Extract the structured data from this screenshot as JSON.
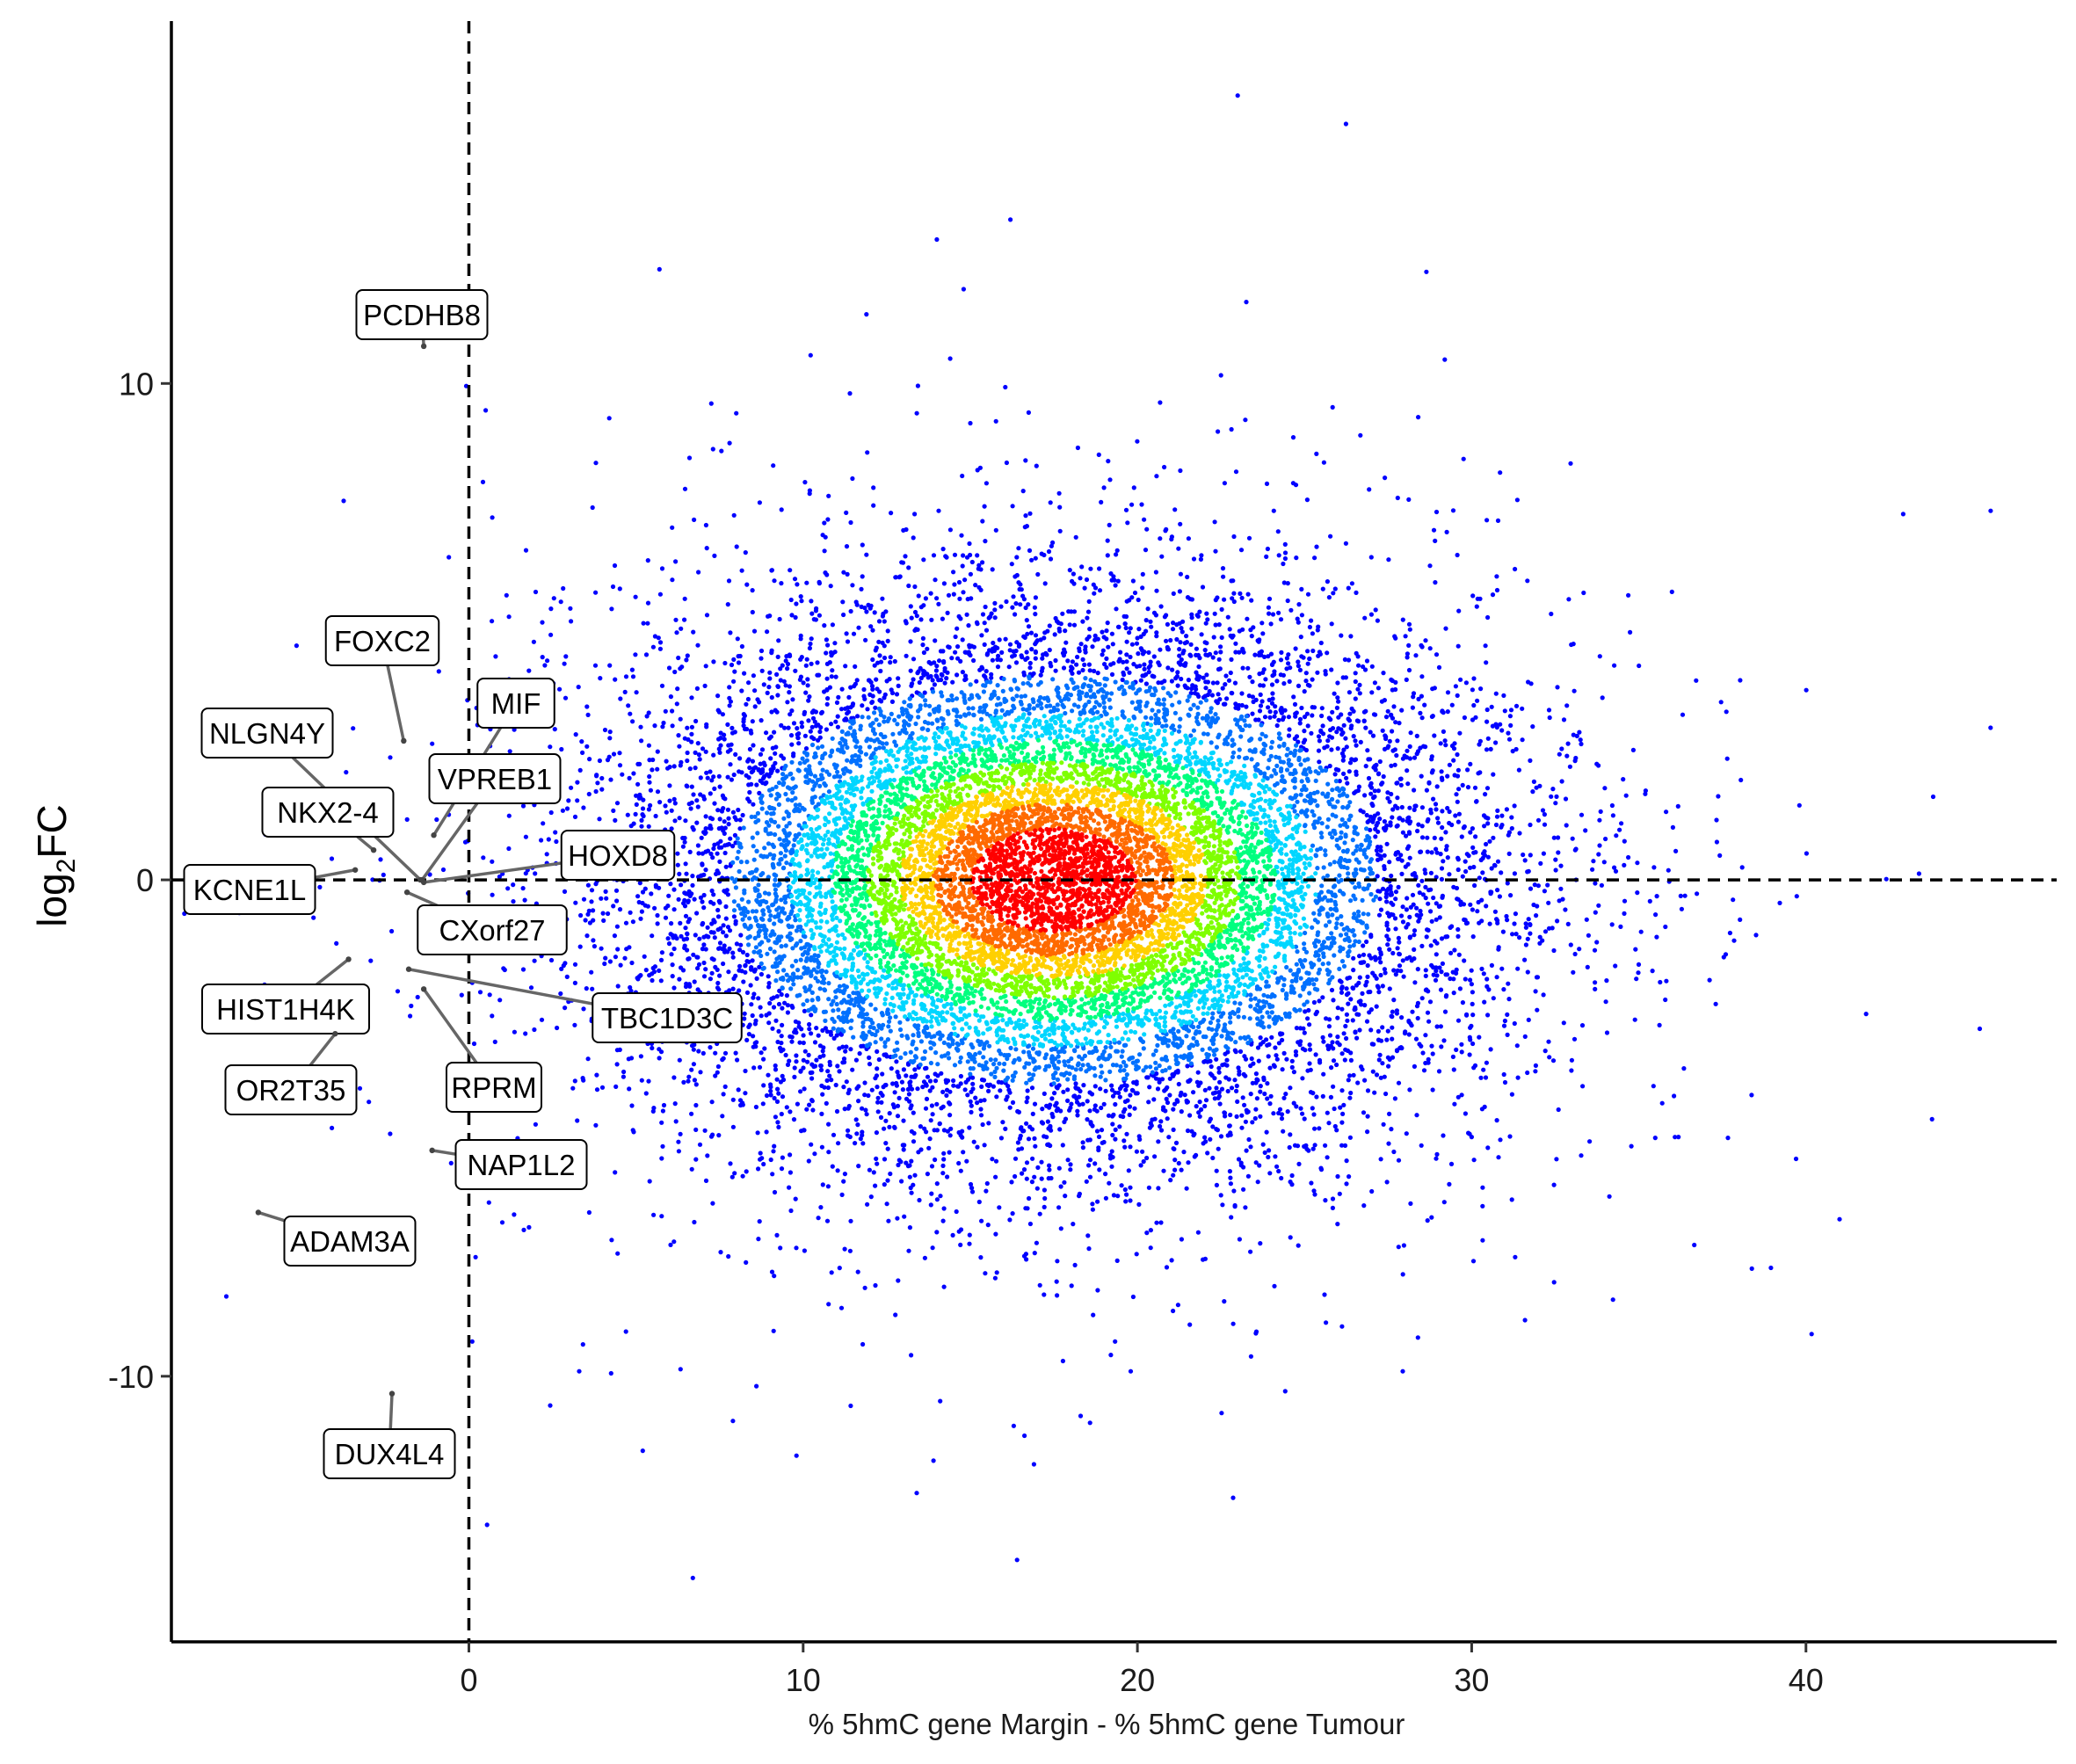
{
  "chart_data": {
    "type": "scatter",
    "title": "",
    "xlabel": "% 5hmC gene Margin - % 5hmC gene Tumour",
    "ylabel": {
      "base": "log",
      "sub": "2",
      "rest": "FC"
    },
    "xlim": [
      -8.9,
      47.5
    ],
    "ylim": [
      -15.35,
      17.3
    ],
    "x_ticks": [
      0,
      10,
      20,
      30,
      40
    ],
    "y_ticks": [
      -10,
      0,
      10
    ],
    "reference_lines": {
      "vertical_x": 0,
      "horizontal_y": 0,
      "style": "dashed"
    },
    "density_coloring": {
      "palette": [
        "#0000ff",
        "#0070ff",
        "#00d6ff",
        "#00ff7f",
        "#7fff00",
        "#ffd000",
        "#ff6a00",
        "#ff0000"
      ],
      "center": {
        "x": 17.5,
        "y": 0
      },
      "spread": {
        "x": 6.0,
        "y": 2.55
      },
      "n_points": 15000
    },
    "outliers": [
      {
        "x": 23.0,
        "y": 15.8
      },
      {
        "x": 16.2,
        "y": 13.3
      },
      {
        "x": 14.0,
        "y": 12.9
      },
      {
        "x": 5.7,
        "y": 12.3
      },
      {
        "x": 14.8,
        "y": 11.9
      },
      {
        "x": 14.4,
        "y": 10.5
      },
      {
        "x": 11.4,
        "y": 9.8
      },
      {
        "x": 8.0,
        "y": 9.4
      },
      {
        "x": 13.4,
        "y": 9.4
      },
      {
        "x": 4.2,
        "y": 9.3
      },
      {
        "x": 15.0,
        "y": 9.2
      },
      {
        "x": 7.8,
        "y": 8.8
      },
      {
        "x": 6.6,
        "y": 8.5
      },
      {
        "x": 3.8,
        "y": 8.4
      },
      {
        "x": 15.3,
        "y": 8.3
      },
      {
        "x": 27.4,
        "y": 8.1
      },
      {
        "x": 19.0,
        "y": 7.9
      },
      {
        "x": 19.9,
        "y": 7.9
      },
      {
        "x": 12.1,
        "y": 7.9
      },
      {
        "x": 17.4,
        "y": 7.6
      },
      {
        "x": 8.7,
        "y": 7.6
      },
      {
        "x": 3.7,
        "y": 7.5
      },
      {
        "x": 0.7,
        "y": 7.3
      },
      {
        "x": 26.6,
        "y": 4.5
      },
      {
        "x": 28.5,
        "y": 3.7
      },
      {
        "x": 27.0,
        "y": 6.5
      },
      {
        "x": 32.0,
        "y": 1.2
      },
      {
        "x": 32.8,
        "y": -0.6
      },
      {
        "x": 34.2,
        "y": -0.9
      },
      {
        "x": 35.5,
        "y": -0.7
      },
      {
        "x": 34.9,
        "y": -1.4
      },
      {
        "x": 37.6,
        "y": -1.5
      },
      {
        "x": 37.3,
        "y": -2.5
      },
      {
        "x": 41.8,
        "y": -2.7
      },
      {
        "x": 45.2,
        "y": -3.0
      },
      {
        "x": 35.7,
        "y": -4.5
      },
      {
        "x": 29.9,
        "y": -5.1
      },
      {
        "x": 31.3,
        "y": -7.6
      },
      {
        "x": 28.8,
        "y": -6.8
      },
      {
        "x": 23.4,
        "y": -9.6
      },
      {
        "x": 19.8,
        "y": -9.9
      },
      {
        "x": 18.3,
        "y": -10.8
      },
      {
        "x": 16.3,
        "y": -11.0
      },
      {
        "x": 13.9,
        "y": -11.7
      },
      {
        "x": 9.8,
        "y": -11.6
      },
      {
        "x": 5.2,
        "y": -11.5
      },
      {
        "x": 7.9,
        "y": -10.9
      },
      {
        "x": 8.6,
        "y": -10.2
      },
      {
        "x": 3.3,
        "y": -9.9
      },
      {
        "x": 4.7,
        "y": -9.1
      },
      {
        "x": 14.1,
        "y": -10.5
      },
      {
        "x": 16.4,
        "y": -13.7
      },
      {
        "x": 0.6,
        "y": -6.5
      },
      {
        "x": 1.0,
        "y": -6.9
      },
      {
        "x": 1.8,
        "y": -7.0
      },
      {
        "x": 0.1,
        "y": -9.3
      },
      {
        "x": 0.2,
        "y": -7.6
      },
      {
        "x": 1.2,
        "y": 5.3
      },
      {
        "x": 0.8,
        "y": 4.5
      },
      {
        "x": 2.0,
        "y": 5.8
      },
      {
        "x": -0.9,
        "y": 4.2
      },
      {
        "x": -0.6,
        "y": 6.5
      },
      {
        "x": 2.9,
        "y": 4.5
      },
      {
        "x": 3.6,
        "y": -6.7
      },
      {
        "x": 33.1,
        "y": 0.6
      },
      {
        "x": 31.1,
        "y": 0.9
      },
      {
        "x": 30.8,
        "y": -1.4
      },
      {
        "x": 30.0,
        "y": -2.1
      }
    ],
    "labeled_points": [
      {
        "label": "PCDHB8",
        "x": -1.35,
        "y": 10.75
      },
      {
        "label": "FOXC2",
        "x": -1.95,
        "y": 2.8
      },
      {
        "label": "MIF",
        "x": -1.05,
        "y": 0.9
      },
      {
        "label": "NLGN4Y",
        "x": -1.45,
        "y": 0.0
      },
      {
        "label": "NKX2-4",
        "x": -2.85,
        "y": 0.6
      },
      {
        "label": "VPREB1",
        "x": -1.4,
        "y": 0.0
      },
      {
        "label": "KCNE1L",
        "x": -3.4,
        "y": 0.2
      },
      {
        "label": "HOXD8",
        "x": -1.35,
        "y": -0.05
      },
      {
        "label": "CXorf27",
        "x": -1.85,
        "y": -0.25
      },
      {
        "label": "HIST1H4K",
        "x": -3.6,
        "y": -1.6
      },
      {
        "label": "TBC1D3C",
        "x": -1.8,
        "y": -1.8
      },
      {
        "label": "RPRM",
        "x": -1.35,
        "y": -2.2
      },
      {
        "label": "OR2T35",
        "x": -4.0,
        "y": -3.1
      },
      {
        "label": "NAP1L2",
        "x": -1.1,
        "y": -5.45
      },
      {
        "label": "ADAM3A",
        "x": -6.3,
        "y": -6.7
      },
      {
        "label": "DUX4L4",
        "x": -2.3,
        "y": -10.35
      }
    ]
  }
}
